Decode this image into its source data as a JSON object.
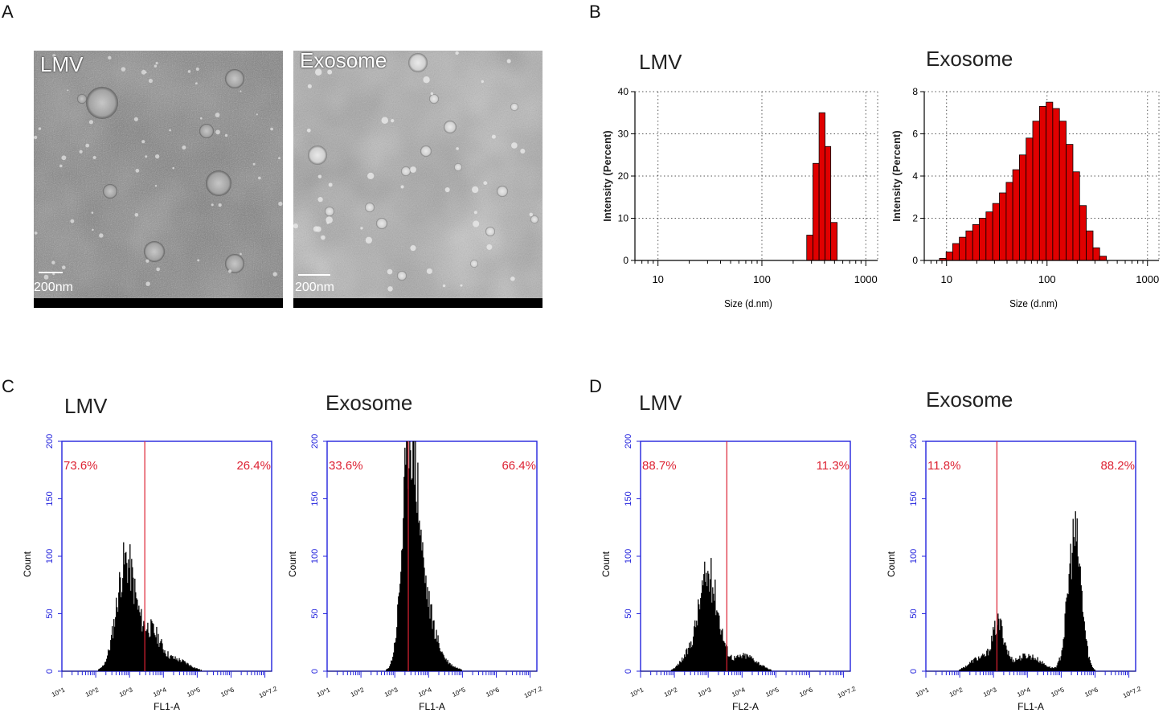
{
  "panels": {
    "A": {
      "letter": "A"
    },
    "B": {
      "letter": "B"
    },
    "C": {
      "letter": "C"
    },
    "D": {
      "letter": "D"
    }
  },
  "em_images": [
    {
      "label": "LMV",
      "scale": "200nm"
    },
    {
      "label": "Exosome",
      "scale": "200nm"
    }
  ],
  "chart_data": [
    {
      "type": "bar",
      "panel": "B",
      "title": "LMV",
      "xlabel": "Size (d.nm)",
      "ylabel": "Intensity (Percent)",
      "xscale": "log",
      "xlim": [
        6,
        1300
      ],
      "ylim": [
        0,
        40
      ],
      "yticks": [
        0,
        10,
        20,
        30,
        40
      ],
      "xticks": [
        10,
        100,
        1000
      ],
      "bars": [
        {
          "x0": 270,
          "x1": 310,
          "value": 6
        },
        {
          "x0": 310,
          "x1": 355,
          "value": 23
        },
        {
          "x0": 355,
          "x1": 405,
          "value": 35
        },
        {
          "x0": 405,
          "x1": 460,
          "value": 27
        },
        {
          "x0": 460,
          "x1": 530,
          "value": 9
        }
      ]
    },
    {
      "type": "bar",
      "panel": "B",
      "title": "Exosome",
      "xlabel": "Size (d.nm)",
      "ylabel": "Intensity (Percent)",
      "xscale": "log",
      "xlim": [
        6,
        1300
      ],
      "ylim": [
        0,
        8
      ],
      "yticks": [
        0,
        2,
        4,
        6,
        8
      ],
      "xticks": [
        10,
        100,
        1000
      ],
      "bars": [
        {
          "x0": 8.5,
          "x1": 9.9,
          "value": 0.1
        },
        {
          "x0": 9.9,
          "x1": 11.5,
          "value": 0.4
        },
        {
          "x0": 11.5,
          "x1": 13.4,
          "value": 0.8
        },
        {
          "x0": 13.4,
          "x1": 15.6,
          "value": 1.1
        },
        {
          "x0": 15.6,
          "x1": 18.2,
          "value": 1.4
        },
        {
          "x0": 18.2,
          "x1": 21.2,
          "value": 1.7
        },
        {
          "x0": 21.2,
          "x1": 24.7,
          "value": 2.0
        },
        {
          "x0": 24.7,
          "x1": 28.8,
          "value": 2.3
        },
        {
          "x0": 28.8,
          "x1": 33.6,
          "value": 2.7
        },
        {
          "x0": 33.6,
          "x1": 39.2,
          "value": 3.2
        },
        {
          "x0": 39.2,
          "x1": 45.6,
          "value": 3.7
        },
        {
          "x0": 45.6,
          "x1": 53.1,
          "value": 4.3
        },
        {
          "x0": 53.1,
          "x1": 61.9,
          "value": 5.0
        },
        {
          "x0": 61.9,
          "x1": 72.1,
          "value": 5.8
        },
        {
          "x0": 72.1,
          "x1": 84.1,
          "value": 6.6
        },
        {
          "x0": 84.1,
          "x1": 98,
          "value": 7.3
        },
        {
          "x0": 98,
          "x1": 114,
          "value": 7.5
        },
        {
          "x0": 114,
          "x1": 133,
          "value": 7.2
        },
        {
          "x0": 133,
          "x1": 155,
          "value": 6.6
        },
        {
          "x0": 155,
          "x1": 181,
          "value": 5.5
        },
        {
          "x0": 181,
          "x1": 211,
          "value": 4.2
        },
        {
          "x0": 211,
          "x1": 246,
          "value": 2.6
        },
        {
          "x0": 246,
          "x1": 287,
          "value": 1.4
        },
        {
          "x0": 287,
          "x1": 334,
          "value": 0.6
        },
        {
          "x0": 334,
          "x1": 390,
          "value": 0.2
        }
      ]
    },
    {
      "type": "histogram",
      "panel": "C",
      "title": "LMV",
      "xlabel": "FL1-A",
      "ylabel": "Count",
      "ylim": [
        0,
        200
      ],
      "yticks": [
        0,
        50,
        100,
        150,
        200
      ],
      "xticks": [
        "10^1",
        "10^2",
        "10^3",
        "10^4",
        "10^5",
        "10^6",
        "10^7.2"
      ],
      "xlim_log": [
        1,
        7.2
      ],
      "gate_log": 3.45,
      "left_percent": "73.6%",
      "right_percent": "26.4%",
      "peaks": [
        {
          "center": 2.9,
          "sigma": 0.28,
          "height": 100
        },
        {
          "center": 3.65,
          "sigma": 0.28,
          "height": 35
        },
        {
          "center": 4.4,
          "sigma": 0.35,
          "height": 10
        }
      ]
    },
    {
      "type": "histogram",
      "panel": "C",
      "title": "Exosome",
      "xlabel": "FL1-A",
      "ylabel": "Count",
      "ylim": [
        0,
        200
      ],
      "yticks": [
        0,
        50,
        100,
        150,
        200
      ],
      "xticks": [
        "10^1",
        "10^2",
        "10^3",
        "10^4",
        "10^5",
        "10^6",
        "10^7.2"
      ],
      "xlim_log": [
        1,
        7.2
      ],
      "gate_log": 3.4,
      "left_percent": "33.6%",
      "right_percent": "66.4%",
      "peaks": [
        {
          "center": 3.45,
          "sigma": 0.22,
          "height": 195
        },
        {
          "center": 3.85,
          "sigma": 0.3,
          "height": 60
        },
        {
          "center": 4.4,
          "sigma": 0.35,
          "height": 6
        }
      ]
    },
    {
      "type": "histogram",
      "panel": "D",
      "title": "LMV",
      "xlabel": "FL2-A",
      "ylabel": "Count",
      "ylim": [
        0,
        200
      ],
      "yticks": [
        0,
        50,
        100,
        150,
        200
      ],
      "xticks": [
        "10^1",
        "10^2",
        "10^3",
        "10^4",
        "10^5",
        "10^6",
        "10^7.2"
      ],
      "xlim_log": [
        1,
        7.2
      ],
      "gate_log": 3.55,
      "left_percent": "88.7%",
      "right_percent": "11.3%",
      "peaks": [
        {
          "center": 3.0,
          "sigma": 0.3,
          "height": 88
        },
        {
          "center": 4.1,
          "sigma": 0.35,
          "height": 14
        },
        {
          "center": 2.3,
          "sigma": 0.2,
          "height": 8
        }
      ]
    },
    {
      "type": "histogram",
      "panel": "D",
      "title": "Exosome",
      "xlabel": "FL1-A",
      "ylabel": "Count",
      "ylim": [
        0,
        200
      ],
      "yticks": [
        0,
        50,
        100,
        150,
        200
      ],
      "xticks": [
        "10^1",
        "10^2",
        "10^3",
        "10^4",
        "10^5",
        "10^6",
        "10^7.2"
      ],
      "xlim_log": [
        1,
        7.2
      ],
      "gate_log": 3.1,
      "left_percent": "11.8%",
      "right_percent": "88.2%",
      "peaks": [
        {
          "center": 3.15,
          "sigma": 0.18,
          "height": 40
        },
        {
          "center": 2.6,
          "sigma": 0.3,
          "height": 12
        },
        {
          "center": 4.0,
          "sigma": 0.4,
          "height": 14
        },
        {
          "center": 5.4,
          "sigma": 0.2,
          "height": 122
        }
      ]
    }
  ]
}
